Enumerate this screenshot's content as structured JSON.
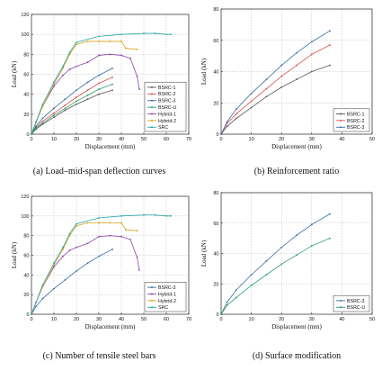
{
  "colors": {
    "BSRC-1": "#555555",
    "BSRC-2": "#d9534f",
    "BSRC-3": "#3a6ea5",
    "BSRC-U": "#2e9d6b",
    "Hybrid-1": "#8e44ad",
    "Hybrid-2": "#d6a21a",
    "SRC": "#2aa6a6"
  },
  "chart_data": [
    {
      "type": "line",
      "caption": "(a) Load–mid-span deflection curves",
      "xlabel": "Displacement (mm)",
      "ylabel": "Load (kN)",
      "xlim": [
        0,
        70
      ],
      "ylim": [
        0,
        120
      ],
      "xticks": [
        0,
        10,
        20,
        30,
        40,
        50,
        60,
        70
      ],
      "yticks": [
        0,
        20,
        40,
        60,
        80,
        100,
        120
      ],
      "grid": true,
      "legend": "bottom-right",
      "series": [
        {
          "name": "BSRC-1",
          "x": [
            0,
            2,
            5,
            10,
            15,
            20,
            25,
            30,
            36
          ],
          "y": [
            0,
            5,
            10,
            17,
            24,
            30,
            35,
            40,
            44
          ]
        },
        {
          "name": "BSRC-2",
          "x": [
            0,
            2,
            5,
            10,
            15,
            20,
            25,
            30,
            36
          ],
          "y": [
            0,
            7,
            13,
            21,
            29,
            37,
            44,
            51,
            57
          ]
        },
        {
          "name": "BSRC-3",
          "x": [
            0,
            2,
            5,
            10,
            15,
            20,
            25,
            30,
            36
          ],
          "y": [
            0,
            8,
            16,
            26,
            35,
            44,
            52,
            59,
            66
          ]
        },
        {
          "name": "BSRC-U",
          "x": [
            0,
            2,
            5,
            10,
            15,
            20,
            25,
            30,
            36
          ],
          "y": [
            0,
            6,
            11,
            19,
            26,
            33,
            39,
            45,
            50
          ]
        },
        {
          "name": "Hybrid-1",
          "x": [
            0,
            2,
            5,
            10,
            14,
            17,
            20,
            25,
            30,
            35,
            40,
            44,
            47,
            48
          ],
          "y": [
            0,
            12,
            28,
            48,
            59,
            65,
            68,
            72,
            79,
            80,
            79,
            76,
            58,
            45
          ]
        },
        {
          "name": "Hybrid-2",
          "x": [
            0,
            2,
            5,
            10,
            14,
            17,
            20,
            25,
            30,
            35,
            40,
            42,
            47
          ],
          "y": [
            0,
            12,
            28,
            50,
            66,
            80,
            90,
            93,
            93,
            93,
            93,
            86,
            85
          ]
        },
        {
          "name": "SRC",
          "x": [
            0,
            2,
            5,
            10,
            14,
            17,
            20,
            30,
            40,
            50,
            55,
            60,
            62
          ],
          "y": [
            0,
            12,
            30,
            52,
            68,
            82,
            92,
            98,
            100,
            101,
            101,
            100,
            100
          ]
        }
      ]
    },
    {
      "type": "line",
      "caption": "(b) Reinforcement ratio",
      "xlabel": "Displacement (mm)",
      "ylabel": "Load (kN)",
      "xlim": [
        0,
        50
      ],
      "ylim": [
        0,
        80
      ],
      "xticks": [
        0,
        10,
        20,
        30,
        40,
        50
      ],
      "yticks": [
        0,
        20,
        40,
        60,
        80
      ],
      "grid": true,
      "legend": "bottom-right",
      "series": [
        {
          "name": "BSRC-1",
          "x": [
            0,
            2,
            5,
            10,
            15,
            20,
            25,
            30,
            36
          ],
          "y": [
            0,
            5,
            10,
            17,
            24,
            30,
            35,
            40,
            44
          ]
        },
        {
          "name": "BSRC-2",
          "x": [
            0,
            2,
            5,
            10,
            15,
            20,
            25,
            30,
            36
          ],
          "y": [
            0,
            7,
            13,
            21,
            29,
            37,
            44,
            51,
            57
          ]
        },
        {
          "name": "BSRC-3",
          "x": [
            0,
            2,
            5,
            10,
            15,
            20,
            25,
            30,
            36
          ],
          "y": [
            0,
            8,
            16,
            26,
            35,
            44,
            52,
            59,
            66
          ]
        }
      ]
    },
    {
      "type": "line",
      "caption": "(c) Number of tensile steel bars",
      "xlabel": "Displacement (mm)",
      "ylabel": "Load (kN)",
      "xlim": [
        0,
        70
      ],
      "ylim": [
        0,
        120
      ],
      "xticks": [
        0,
        10,
        20,
        30,
        40,
        50,
        60,
        70
      ],
      "yticks": [
        0,
        20,
        40,
        60,
        80,
        100,
        120
      ],
      "grid": true,
      "legend": "bottom-right",
      "series": [
        {
          "name": "BSRC-3",
          "x": [
            0,
            2,
            5,
            10,
            15,
            20,
            25,
            30,
            36
          ],
          "y": [
            0,
            8,
            16,
            26,
            35,
            44,
            52,
            59,
            66
          ]
        },
        {
          "name": "Hybrid-1",
          "x": [
            0,
            2,
            5,
            10,
            14,
            17,
            20,
            25,
            30,
            35,
            40,
            44,
            47,
            48
          ],
          "y": [
            0,
            12,
            28,
            48,
            59,
            65,
            68,
            72,
            79,
            80,
            79,
            76,
            58,
            45
          ]
        },
        {
          "name": "Hybrid-2",
          "x": [
            0,
            2,
            5,
            10,
            14,
            17,
            20,
            25,
            30,
            35,
            40,
            42,
            47
          ],
          "y": [
            0,
            12,
            28,
            50,
            66,
            80,
            90,
            93,
            93,
            93,
            93,
            86,
            85
          ]
        },
        {
          "name": "SRC",
          "x": [
            0,
            2,
            5,
            10,
            14,
            17,
            20,
            30,
            40,
            50,
            55,
            60,
            62
          ],
          "y": [
            0,
            12,
            30,
            52,
            68,
            82,
            92,
            98,
            100,
            101,
            101,
            100,
            100
          ]
        }
      ]
    },
    {
      "type": "line",
      "caption": "(d) Surface modification",
      "xlabel": "Displacement (mm)",
      "ylabel": "Load (kN)",
      "xlim": [
        0,
        50
      ],
      "ylim": [
        0,
        80
      ],
      "xticks": [
        0,
        10,
        20,
        30,
        40,
        50
      ],
      "yticks": [
        0,
        20,
        40,
        60,
        80
      ],
      "grid": true,
      "legend": "bottom-right",
      "series": [
        {
          "name": "BSRC-3",
          "x": [
            0,
            2,
            5,
            10,
            15,
            20,
            25,
            30,
            36
          ],
          "y": [
            0,
            8,
            16,
            26,
            35,
            44,
            52,
            59,
            66
          ]
        },
        {
          "name": "BSRC-U",
          "x": [
            0,
            2,
            5,
            10,
            15,
            20,
            25,
            30,
            36
          ],
          "y": [
            0,
            6,
            11,
            19,
            26,
            33,
            39,
            45,
            50
          ]
        }
      ]
    }
  ]
}
